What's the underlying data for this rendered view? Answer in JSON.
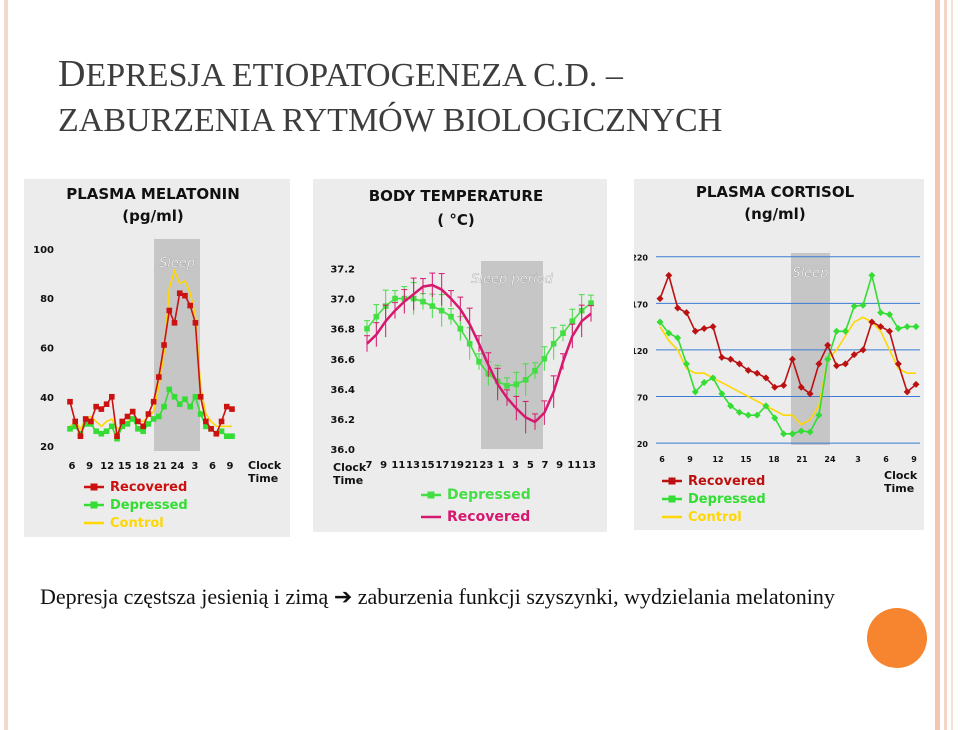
{
  "slide": {
    "title_line1_initial": "D",
    "title_line1_rest": "EPRESJA ETIOPATOGENEZA C.D. –",
    "title_line2": "ZABURZENIA RYTMÓW BIOLOGICZNYCH",
    "caption_before_arrow": "Depresja częstsza jesienią i zimą ",
    "caption_arrow": "➔",
    "caption_after_arrow": " zaburzenia funkcji szyszynki, wydzielania melatoniny",
    "colors": {
      "accent": "#f7842f",
      "recovered_red": "#cc1111",
      "depressed_green": "#33dd33",
      "control_yellow": "#ffd700",
      "recovered_magenta": "#d6186e",
      "sleep_band": "#c8c8c8"
    }
  },
  "chart_data": [
    {
      "type": "line",
      "title": "PLASMA MELATONIN",
      "subtitle": "(pg/ml)",
      "band_label": "Sleep",
      "band_range": [
        22,
        4
      ],
      "x_tick_labels": [
        "6",
        "9",
        "12",
        "15",
        "18",
        "21",
        "24",
        "3",
        "6",
        "9"
      ],
      "x_axis_label": [
        "Clock",
        "Time"
      ],
      "y_ticks": [
        20,
        40,
        60,
        80,
        100
      ],
      "ylim": [
        18,
        104
      ],
      "legend": [
        {
          "name": "Recovered",
          "color": "#cc1111",
          "marker": "square"
        },
        {
          "name": "Depressed",
          "color": "#33dd33",
          "marker": "square"
        },
        {
          "name": "Control",
          "color": "#ffd700",
          "marker": "none"
        }
      ],
      "series": [
        {
          "name": "Recovered",
          "values": [
            38,
            30,
            24,
            31,
            30,
            36,
            35,
            37,
            40,
            24,
            30,
            32,
            34,
            30,
            28,
            33,
            38,
            48,
            61,
            75,
            70,
            82,
            81,
            77,
            70,
            40,
            30,
            27,
            25,
            30,
            36,
            35
          ]
        },
        {
          "name": "Depressed",
          "values": [
            27,
            28,
            25,
            29,
            29,
            26,
            25,
            26,
            28,
            23,
            28,
            29,
            31,
            27,
            26,
            29,
            31,
            32,
            36,
            43,
            40,
            37,
            39,
            36,
            40,
            33,
            28,
            27,
            25,
            26,
            24,
            24
          ]
        },
        {
          "name": "Control",
          "values": [
            28,
            30,
            27,
            31,
            32,
            30,
            28,
            30,
            31,
            27,
            28,
            30,
            31,
            30,
            30,
            32,
            34,
            44,
            58,
            84,
            91,
            86,
            87,
            82,
            73,
            44,
            33,
            30,
            28,
            28,
            28,
            28
          ]
        }
      ]
    },
    {
      "type": "line",
      "title": "BODY TEMPERATURE",
      "subtitle": "( °C)",
      "band_label": "Sleep period",
      "band_range": [
        23,
        7
      ],
      "x_tick_labels": [
        "7",
        "9",
        "11",
        "13",
        "15",
        "17",
        "19",
        "21",
        "23",
        "1",
        "3",
        "5",
        "7",
        "9",
        "11",
        "13"
      ],
      "x_axis_label": [
        "Clock",
        "Time"
      ],
      "y_ticks": [
        "36.0",
        "36.2",
        "36.4",
        "36.6",
        "36.8",
        "37.0",
        "37.2"
      ],
      "ylim": [
        36.0,
        37.25
      ],
      "legend": [
        {
          "name": "Depressed",
          "color": "#44dd44",
          "marker": "square"
        },
        {
          "name": "Recovered",
          "color": "#d6186e",
          "marker": "none"
        }
      ],
      "series": [
        {
          "name": "Depressed",
          "values": [
            36.8,
            36.88,
            36.95,
            37.0,
            37.0,
            37.0,
            36.98,
            36.95,
            36.92,
            36.88,
            36.8,
            36.7,
            36.58,
            36.5,
            36.45,
            36.42,
            36.43,
            36.46,
            36.52,
            36.6,
            36.7,
            36.77,
            36.85,
            36.92,
            36.97
          ]
        },
        {
          "name": "Recovered",
          "values": [
            36.7,
            36.76,
            36.85,
            36.92,
            36.98,
            37.03,
            37.08,
            37.09,
            37.06,
            37.0,
            36.93,
            36.83,
            36.7,
            36.56,
            36.43,
            36.34,
            36.27,
            36.21,
            36.18,
            36.24,
            36.38,
            36.58,
            36.75,
            36.85,
            36.9
          ]
        }
      ]
    },
    {
      "type": "line",
      "title": "PLASMA CORTISOL",
      "subtitle": "(ng/ml)",
      "band_label": "Sleep",
      "band_range": [
        22,
        3
      ],
      "x_tick_labels": [
        "6",
        "9",
        "12",
        "15",
        "18",
        "21",
        "24",
        "3",
        "6",
        "9"
      ],
      "x_axis_label": [
        "Clock",
        "Time"
      ],
      "y_ticks": [
        20,
        70,
        120,
        170,
        220
      ],
      "ylim": [
        18,
        224
      ],
      "legend": [
        {
          "name": "Recovered",
          "color": "#bb1111",
          "marker": "square"
        },
        {
          "name": "Depressed",
          "color": "#33dd33",
          "marker": "square"
        },
        {
          "name": "Control",
          "color": "#ffd700",
          "marker": "none"
        }
      ],
      "series": [
        {
          "name": "Recovered",
          "values": [
            175,
            200,
            165,
            160,
            140,
            143,
            145,
            112,
            110,
            105,
            98,
            95,
            90,
            80,
            82,
            110,
            80,
            73,
            105,
            125,
            103,
            105,
            115,
            120,
            150,
            145,
            140,
            105,
            75,
            83
          ]
        },
        {
          "name": "Depressed",
          "values": [
            150,
            138,
            133,
            105,
            75,
            85,
            90,
            73,
            60,
            53,
            50,
            50,
            60,
            47,
            30,
            30,
            33,
            32,
            50,
            110,
            140,
            140,
            167,
            168,
            200,
            160,
            158,
            143,
            145,
            145
          ]
        },
        {
          "name": "Control",
          "values": [
            145,
            130,
            120,
            100,
            95,
            95,
            90,
            85,
            80,
            75,
            70,
            65,
            60,
            55,
            50,
            50,
            40,
            45,
            60,
            110,
            120,
            135,
            150,
            155,
            150,
            140,
            120,
            100,
            95,
            95
          ]
        }
      ]
    }
  ]
}
